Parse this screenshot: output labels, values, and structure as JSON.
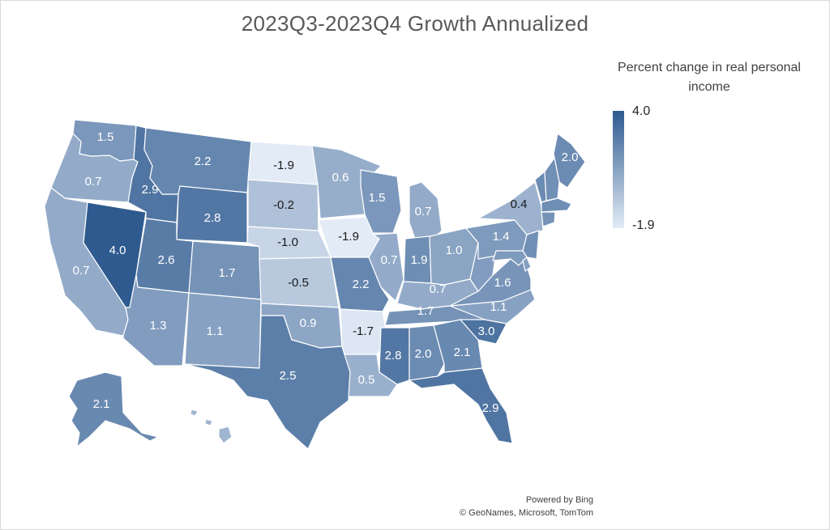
{
  "title": "2023Q3-2023Q4 Growth Annualized",
  "legend": {
    "title": "Percent change in real personal income",
    "max_label": "4.0",
    "min_label": "-1.9",
    "max": 4.0,
    "min": -1.9,
    "color_low": "#e3ebf6",
    "color_high": "#2e5a8f"
  },
  "attribution": {
    "line1": "Powered by Bing",
    "line2": "© GeoNames, Microsoft, TomTom"
  },
  "states": [
    {
      "id": "WA",
      "value": 1.5,
      "label": "1.5"
    },
    {
      "id": "OR",
      "value": 0.7,
      "label": "0.7"
    },
    {
      "id": "CA",
      "value": 0.7,
      "label": "0.7"
    },
    {
      "id": "NV",
      "value": 4.0,
      "label": "4.0"
    },
    {
      "id": "ID",
      "value": 2.9,
      "label": "2.9"
    },
    {
      "id": "MT",
      "value": 2.2,
      "label": "2.2"
    },
    {
      "id": "WY",
      "value": 2.8,
      "label": "2.8"
    },
    {
      "id": "UT",
      "value": 2.6,
      "label": "2.6"
    },
    {
      "id": "AZ",
      "value": 1.3,
      "label": "1.3"
    },
    {
      "id": "CO",
      "value": 1.7,
      "label": "1.7"
    },
    {
      "id": "NM",
      "value": 1.1,
      "label": "1.1"
    },
    {
      "id": "ND",
      "value": -1.9,
      "label": "-1.9"
    },
    {
      "id": "SD",
      "value": -0.2,
      "label": "-0.2"
    },
    {
      "id": "NE",
      "value": -1.0,
      "label": "-1.0"
    },
    {
      "id": "KS",
      "value": -0.5,
      "label": "-0.5"
    },
    {
      "id": "OK",
      "value": 0.9,
      "label": "0.9"
    },
    {
      "id": "TX",
      "value": 2.5,
      "label": "2.5"
    },
    {
      "id": "MN",
      "value": 0.6,
      "label": "0.6"
    },
    {
      "id": "IA",
      "value": -1.9,
      "label": "-1.9"
    },
    {
      "id": "MO",
      "value": 2.2,
      "label": "2.2"
    },
    {
      "id": "AR",
      "value": -1.7,
      "label": "-1.7"
    },
    {
      "id": "LA",
      "value": 0.5,
      "label": "0.5"
    },
    {
      "id": "WI",
      "value": 1.5,
      "label": "1.5"
    },
    {
      "id": "IL",
      "value": 0.7,
      "label": "0.7"
    },
    {
      "id": "MI",
      "value": 0.7,
      "label": "0.7"
    },
    {
      "id": "IN",
      "value": 1.9,
      "label": "1.9"
    },
    {
      "id": "OH",
      "value": 1.0,
      "label": "1.0"
    },
    {
      "id": "KY",
      "value": 0.7,
      "label": "0.7"
    },
    {
      "id": "TN",
      "value": 1.7,
      "label": "1.7"
    },
    {
      "id": "MS",
      "value": 2.8,
      "label": "2.8"
    },
    {
      "id": "AL",
      "value": 2.0,
      "label": "2.0"
    },
    {
      "id": "GA",
      "value": 2.1,
      "label": "2.1"
    },
    {
      "id": "FL",
      "value": 2.9,
      "label": "2.9"
    },
    {
      "id": "SC",
      "value": 3.0,
      "label": "3.0"
    },
    {
      "id": "NC",
      "value": 1.1,
      "label": "1.1"
    },
    {
      "id": "VA",
      "value": 1.6,
      "label": "1.6"
    },
    {
      "id": "WV",
      "value": 1.3,
      "label": ""
    },
    {
      "id": "PA",
      "value": 1.4,
      "label": "1.4"
    },
    {
      "id": "NY",
      "value": 0.4,
      "label": "0.4"
    },
    {
      "id": "ME",
      "value": 2.0,
      "label": "2.0"
    },
    {
      "id": "VT",
      "value": 2.0,
      "label": ""
    },
    {
      "id": "NH",
      "value": 1.8,
      "label": ""
    },
    {
      "id": "MA",
      "value": 1.9,
      "label": ""
    },
    {
      "id": "CT",
      "value": 1.7,
      "label": ""
    },
    {
      "id": "NJ",
      "value": 1.8,
      "label": ""
    },
    {
      "id": "MD",
      "value": 1.4,
      "label": ""
    },
    {
      "id": "DE",
      "value": 1.2,
      "label": ""
    },
    {
      "id": "AK",
      "value": 2.1,
      "label": "2.1"
    },
    {
      "id": "HI",
      "value": 0.3,
      "label": ""
    }
  ]
}
